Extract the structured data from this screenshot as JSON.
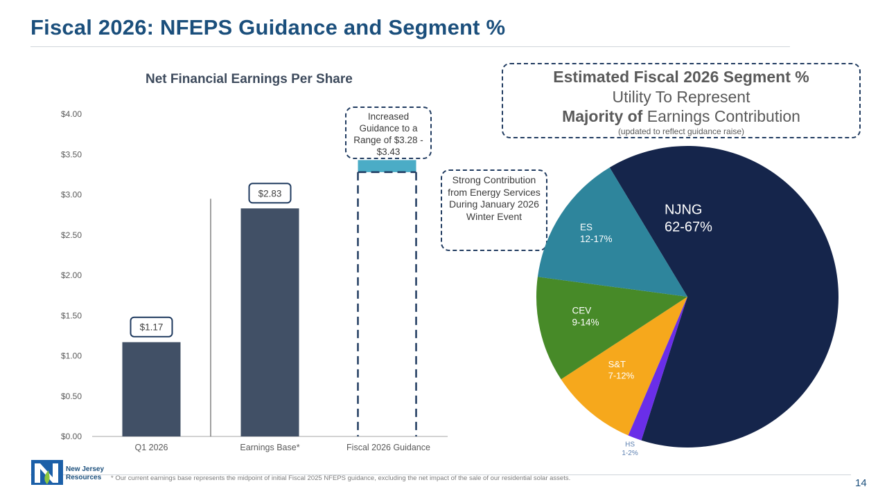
{
  "slide": {
    "title": "Fiscal 2026: NFEPS Guidance and Segment %",
    "page_number": "14",
    "footnote": "* Our current earnings base represents the midpoint of initial Fiscal 2025 NFEPS guidance, excluding the net impact of the sale of our residential solar assets.",
    "logo_text_line1": "New Jersey",
    "logo_text_line2": "Resources",
    "colors": {
      "title": "#1b4f7c",
      "bar": "#415066",
      "guidance_top": "#4bacc6",
      "callout_border": "#1f3a5f"
    }
  },
  "callouts": {
    "guidance": "Increased Guidance to a Range of $3.28 - $3.43",
    "energy_services": "Strong Contribution from Energy Services During January 2026 Winter Event"
  },
  "segment_box": {
    "line1": "Estimated Fiscal 2026 Segment %",
    "line2": "Utility To Represent",
    "line3_bold": "Majority of",
    "line3_rest": " Earnings Contribution",
    "line4": "(updated to reflect guidance raise)"
  },
  "chart_data": [
    {
      "type": "bar",
      "title": "Net Financial Earnings Per Share",
      "categories": [
        "Q1 2026",
        "Earnings Base*",
        "Fiscal 2026 Guidance"
      ],
      "values": [
        1.17,
        2.83,
        null
      ],
      "data_labels": [
        "$1.17",
        "$2.83",
        ""
      ],
      "guidance_range": [
        3.28,
        3.43
      ],
      "ylim": [
        0,
        4
      ],
      "yticks": [
        "$0.00",
        "$0.50",
        "$1.00",
        "$1.50",
        "$2.00",
        "$2.50",
        "$3.00",
        "$3.50",
        "$4.00"
      ],
      "ytick_values": [
        0,
        0.5,
        1,
        1.5,
        2,
        2.5,
        3,
        3.5,
        4
      ],
      "grid": false,
      "xlabel": "",
      "ylabel": ""
    },
    {
      "type": "pie",
      "title": "Estimated Fiscal 2026 Segment %",
      "slices": [
        {
          "name": "NJNG",
          "range": "62-67%",
          "value": 64.5,
          "color": "#15254b"
        },
        {
          "name": "HS",
          "range": "1-2%",
          "value": 1.5,
          "color": "#6a2ee8"
        },
        {
          "name": "S&T",
          "range": "7-12%",
          "value": 9.5,
          "color": "#f6a81c"
        },
        {
          "name": "CEV",
          "range": "9-14%",
          "value": 11.5,
          "color": "#478a28"
        },
        {
          "name": "ES",
          "range": "12-17%",
          "value": 14.5,
          "color": "#2e859c"
        }
      ]
    }
  ]
}
